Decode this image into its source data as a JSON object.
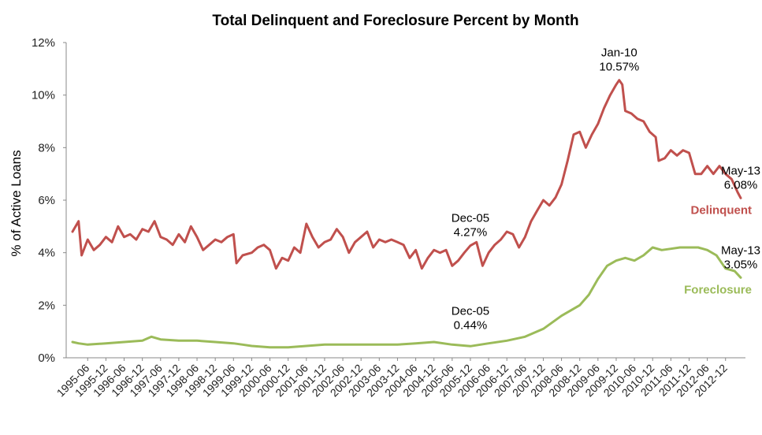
{
  "chart_data": {
    "type": "line",
    "title": "Total Delinquent and Foreclosure Percent by Month",
    "xlabel": "",
    "ylabel": "% of Active Loans",
    "ylim": [
      0,
      12
    ],
    "yticks": [
      "0%",
      "2%",
      "4%",
      "6%",
      "8%",
      "10%",
      "12%"
    ],
    "grid": false,
    "x_start": "1995-01",
    "x_end": "2013-05",
    "xticks": [
      "1995-06",
      "1995-12",
      "1996-06",
      "1996-12",
      "1997-06",
      "1997-12",
      "1998-06",
      "1998-12",
      "1999-06",
      "1999-12",
      "2000-06",
      "2000-12",
      "2001-06",
      "2001-12",
      "2002-06",
      "2002-12",
      "2003-06",
      "2003-12",
      "2004-06",
      "2004-12",
      "2005-06",
      "2005-12",
      "2006-06",
      "2006-12",
      "2007-06",
      "2007-12",
      "2008-06",
      "2008-12",
      "2009-06",
      "2009-12",
      "2010-06",
      "2010-12",
      "2011-06",
      "2011-12",
      "2012-06",
      "2012-12"
    ],
    "series": [
      {
        "name": "Delinquent",
        "color": "#c0504d",
        "points": [
          [
            "1995-01",
            4.8
          ],
          [
            "1995-03",
            5.2
          ],
          [
            "1995-04",
            3.9
          ],
          [
            "1995-06",
            4.5
          ],
          [
            "1995-08",
            4.1
          ],
          [
            "1995-10",
            4.3
          ],
          [
            "1995-12",
            4.6
          ],
          [
            "1996-02",
            4.4
          ],
          [
            "1996-04",
            5.0
          ],
          [
            "1996-06",
            4.6
          ],
          [
            "1996-08",
            4.7
          ],
          [
            "1996-10",
            4.5
          ],
          [
            "1996-12",
            4.9
          ],
          [
            "1997-02",
            4.8
          ],
          [
            "1997-04",
            5.2
          ],
          [
            "1997-06",
            4.6
          ],
          [
            "1997-08",
            4.5
          ],
          [
            "1997-10",
            4.3
          ],
          [
            "1997-12",
            4.7
          ],
          [
            "1998-02",
            4.4
          ],
          [
            "1998-04",
            5.0
          ],
          [
            "1998-06",
            4.6
          ],
          [
            "1998-08",
            4.1
          ],
          [
            "1998-10",
            4.3
          ],
          [
            "1998-12",
            4.5
          ],
          [
            "1999-02",
            4.4
          ],
          [
            "1999-04",
            4.6
          ],
          [
            "1999-06",
            4.7
          ],
          [
            "1999-07",
            3.6
          ],
          [
            "1999-09",
            3.9
          ],
          [
            "1999-12",
            4.0
          ],
          [
            "2000-02",
            4.2
          ],
          [
            "2000-04",
            4.3
          ],
          [
            "2000-06",
            4.1
          ],
          [
            "2000-08",
            3.4
          ],
          [
            "2000-10",
            3.8
          ],
          [
            "2000-12",
            3.7
          ],
          [
            "2001-02",
            4.2
          ],
          [
            "2001-04",
            4.0
          ],
          [
            "2001-06",
            5.1
          ],
          [
            "2001-08",
            4.6
          ],
          [
            "2001-10",
            4.2
          ],
          [
            "2001-12",
            4.4
          ],
          [
            "2002-02",
            4.5
          ],
          [
            "2002-04",
            4.9
          ],
          [
            "2002-06",
            4.6
          ],
          [
            "2002-08",
            4.0
          ],
          [
            "2002-10",
            4.4
          ],
          [
            "2002-12",
            4.6
          ],
          [
            "2003-02",
            4.8
          ],
          [
            "2003-04",
            4.2
          ],
          [
            "2003-06",
            4.5
          ],
          [
            "2003-08",
            4.4
          ],
          [
            "2003-10",
            4.5
          ],
          [
            "2003-12",
            4.4
          ],
          [
            "2004-02",
            4.3
          ],
          [
            "2004-04",
            3.8
          ],
          [
            "2004-06",
            4.1
          ],
          [
            "2004-08",
            3.4
          ],
          [
            "2004-10",
            3.8
          ],
          [
            "2004-12",
            4.1
          ],
          [
            "2005-02",
            4.0
          ],
          [
            "2005-04",
            4.1
          ],
          [
            "2005-06",
            3.5
          ],
          [
            "2005-08",
            3.7
          ],
          [
            "2005-10",
            4.0
          ],
          [
            "2005-12",
            4.27
          ],
          [
            "2006-02",
            4.4
          ],
          [
            "2006-04",
            3.5
          ],
          [
            "2006-06",
            4.0
          ],
          [
            "2006-08",
            4.3
          ],
          [
            "2006-10",
            4.5
          ],
          [
            "2006-12",
            4.8
          ],
          [
            "2007-02",
            4.7
          ],
          [
            "2007-04",
            4.2
          ],
          [
            "2007-06",
            4.6
          ],
          [
            "2007-08",
            5.2
          ],
          [
            "2007-10",
            5.6
          ],
          [
            "2007-12",
            6.0
          ],
          [
            "2008-02",
            5.8
          ],
          [
            "2008-04",
            6.1
          ],
          [
            "2008-06",
            6.6
          ],
          [
            "2008-08",
            7.5
          ],
          [
            "2008-10",
            8.5
          ],
          [
            "2008-12",
            8.6
          ],
          [
            "2009-02",
            8.0
          ],
          [
            "2009-04",
            8.5
          ],
          [
            "2009-06",
            8.9
          ],
          [
            "2009-08",
            9.5
          ],
          [
            "2009-10",
            10.0
          ],
          [
            "2009-12",
            10.4
          ],
          [
            "2010-01",
            10.57
          ],
          [
            "2010-02",
            10.4
          ],
          [
            "2010-03",
            9.4
          ],
          [
            "2010-05",
            9.3
          ],
          [
            "2010-07",
            9.1
          ],
          [
            "2010-09",
            9.0
          ],
          [
            "2010-11",
            8.6
          ],
          [
            "2011-01",
            8.4
          ],
          [
            "2011-02",
            7.5
          ],
          [
            "2011-04",
            7.6
          ],
          [
            "2011-06",
            7.9
          ],
          [
            "2011-08",
            7.7
          ],
          [
            "2011-10",
            7.9
          ],
          [
            "2011-12",
            7.8
          ],
          [
            "2012-02",
            7.0
          ],
          [
            "2012-04",
            7.0
          ],
          [
            "2012-06",
            7.3
          ],
          [
            "2012-08",
            7.0
          ],
          [
            "2012-10",
            7.3
          ],
          [
            "2012-12",
            7.0
          ],
          [
            "2013-02",
            6.8
          ],
          [
            "2013-04",
            6.3
          ],
          [
            "2013-05",
            6.08
          ]
        ]
      },
      {
        "name": "Foreclosure",
        "color": "#9bbb59",
        "points": [
          [
            "1995-01",
            0.6
          ],
          [
            "1995-03",
            0.55
          ],
          [
            "1995-06",
            0.5
          ],
          [
            "1995-12",
            0.55
          ],
          [
            "1996-06",
            0.6
          ],
          [
            "1996-12",
            0.65
          ],
          [
            "1997-03",
            0.8
          ],
          [
            "1997-06",
            0.7
          ],
          [
            "1997-12",
            0.65
          ],
          [
            "1998-06",
            0.65
          ],
          [
            "1998-12",
            0.6
          ],
          [
            "1999-06",
            0.55
          ],
          [
            "1999-09",
            0.5
          ],
          [
            "1999-12",
            0.45
          ],
          [
            "2000-06",
            0.4
          ],
          [
            "2000-12",
            0.4
          ],
          [
            "2001-06",
            0.45
          ],
          [
            "2001-12",
            0.5
          ],
          [
            "2002-06",
            0.5
          ],
          [
            "2002-12",
            0.5
          ],
          [
            "2003-06",
            0.5
          ],
          [
            "2003-12",
            0.5
          ],
          [
            "2004-06",
            0.55
          ],
          [
            "2004-12",
            0.6
          ],
          [
            "2005-06",
            0.5
          ],
          [
            "2005-12",
            0.44
          ],
          [
            "2006-06",
            0.55
          ],
          [
            "2006-12",
            0.65
          ],
          [
            "2007-06",
            0.8
          ],
          [
            "2007-12",
            1.1
          ],
          [
            "2008-06",
            1.6
          ],
          [
            "2008-12",
            2.0
          ],
          [
            "2009-03",
            2.4
          ],
          [
            "2009-06",
            3.0
          ],
          [
            "2009-09",
            3.5
          ],
          [
            "2009-12",
            3.7
          ],
          [
            "2010-03",
            3.8
          ],
          [
            "2010-06",
            3.7
          ],
          [
            "2010-09",
            3.9
          ],
          [
            "2010-12",
            4.2
          ],
          [
            "2011-03",
            4.1
          ],
          [
            "2011-06",
            4.15
          ],
          [
            "2011-09",
            4.2
          ],
          [
            "2011-12",
            4.2
          ],
          [
            "2012-03",
            4.2
          ],
          [
            "2012-06",
            4.1
          ],
          [
            "2012-09",
            3.9
          ],
          [
            "2012-12",
            3.4
          ],
          [
            "2013-03",
            3.3
          ],
          [
            "2013-05",
            3.05
          ]
        ]
      }
    ],
    "annotations": [
      {
        "month": "2005-12",
        "series": "Delinquent",
        "line1": "Dec-05",
        "line2": "4.27%"
      },
      {
        "month": "2010-01",
        "series": "Delinquent",
        "line1": "Jan-10",
        "line2": "10.57%"
      },
      {
        "month": "2013-05",
        "series": "Delinquent",
        "line1": "May-13",
        "line2": "6.08%"
      },
      {
        "month": "2005-12",
        "series": "Foreclosure",
        "line1": "Dec-05",
        "line2": "0.44%"
      },
      {
        "month": "2013-05",
        "series": "Foreclosure",
        "line1": "May-13",
        "line2": "3.05%"
      }
    ],
    "series_labels": [
      {
        "series": "Delinquent",
        "text": "Delinquent"
      },
      {
        "series": "Foreclosure",
        "text": "Foreclosure"
      }
    ]
  }
}
